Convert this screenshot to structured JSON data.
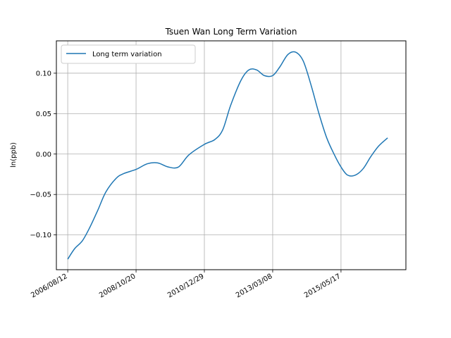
{
  "chart_data": {
    "type": "line",
    "title": "Tsuen Wan Long Term Variation",
    "xlabel": "",
    "ylabel": "ln(ppb)",
    "x_tick_labels": [
      "2006/08/12",
      "2008/10/20",
      "2010/12/29",
      "2013/03/08",
      "2015/05/17"
    ],
    "x_range": [
      "2006/04/01",
      "2017/06/15"
    ],
    "ylim": [
      -0.143,
      0.14
    ],
    "y_ticks": [
      -0.1,
      -0.05,
      0.0,
      0.05,
      0.1
    ],
    "y_tick_labels": [
      "−0.10",
      "−0.05",
      "0.00",
      "0.05",
      "0.10"
    ],
    "grid": true,
    "legend_position": "top-left",
    "line_color": "#1f77b4",
    "series": [
      {
        "name": "Long term variation",
        "x": [
          "2006/08/12",
          "2006/11/01",
          "2007/02/01",
          "2007/05/01",
          "2007/08/01",
          "2007/11/01",
          "2008/03/01",
          "2008/06/01",
          "2008/10/20",
          "2009/03/01",
          "2009/07/01",
          "2009/11/01",
          "2010/03/01",
          "2010/07/01",
          "2010/12/29",
          "2011/05/01",
          "2011/08/01",
          "2011/11/01",
          "2012/03/01",
          "2012/06/01",
          "2012/09/01",
          "2012/12/01",
          "2013/03/08",
          "2013/06/01",
          "2013/09/01",
          "2013/12/01",
          "2014/03/01",
          "2014/06/01",
          "2014/09/01",
          "2014/12/01",
          "2015/03/01",
          "2015/05/17",
          "2015/08/01",
          "2015/11/01",
          "2016/02/01",
          "2016/05/01",
          "2016/08/01",
          "2016/11/13"
        ],
        "y": [
          -0.13,
          -0.117,
          -0.107,
          -0.09,
          -0.069,
          -0.047,
          -0.03,
          -0.024,
          -0.019,
          -0.012,
          -0.011,
          -0.016,
          -0.016,
          -0.001,
          0.012,
          0.018,
          0.03,
          0.06,
          0.091,
          0.104,
          0.104,
          0.097,
          0.097,
          0.108,
          0.123,
          0.126,
          0.115,
          0.085,
          0.05,
          0.02,
          -0.001,
          -0.016,
          -0.026,
          -0.026,
          -0.018,
          -0.003,
          0.01,
          0.02
        ]
      }
    ]
  }
}
